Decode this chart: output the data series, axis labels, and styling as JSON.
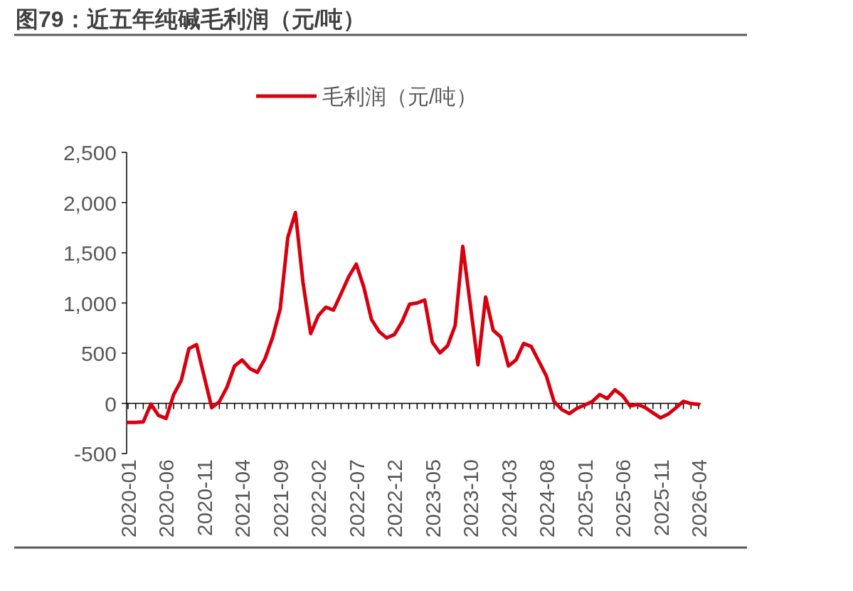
{
  "chart_data": {
    "type": "line",
    "title": "图79：近五年纯碱毛利润（元/吨）",
    "categories": [
      "2020-01",
      null,
      null,
      null,
      null,
      "2020-06",
      null,
      null,
      null,
      null,
      "2020-11",
      null,
      null,
      null,
      null,
      "2021-04",
      null,
      null,
      null,
      null,
      "2021-09",
      null,
      null,
      null,
      null,
      "2022-02",
      null,
      null,
      null,
      null,
      "2022-07",
      null,
      null,
      null,
      null,
      "2022-12",
      null,
      null,
      null,
      null,
      "2023-05",
      null,
      null,
      null,
      null,
      "2023-10",
      null,
      null,
      null,
      null,
      "2024-03",
      null,
      null,
      null,
      null,
      "2024-08",
      null,
      null,
      null,
      null,
      "2025-01",
      null,
      null,
      null,
      null,
      "2025-06",
      null,
      null,
      null,
      null,
      "2025-11",
      null,
      null,
      null,
      null,
      "2026-04"
    ],
    "series": [
      {
        "name": "毛利润（元/吨）",
        "color": "#d7000f",
        "values": [
          -190,
          -190,
          -185,
          -7,
          -120,
          -150,
          88,
          230,
          545,
          585,
          270,
          -43,
          17,
          160,
          373,
          432,
          348,
          308,
          444,
          657,
          941,
          1652,
          1901,
          1202,
          695,
          873,
          958,
          929,
          1092,
          1261,
          1387,
          1155,
          835,
          716,
          652,
          685,
          811,
          988,
          1000,
          1029,
          609,
          503,
          574,
          775,
          1564,
          975,
          384,
          1059,
          728,
          661,
          373,
          432,
          597,
          567,
          420,
          270,
          17,
          -61,
          -102,
          -50,
          -18,
          17,
          88,
          48,
          135,
          76,
          -26,
          -11,
          -43,
          -95,
          -144,
          -107,
          -45,
          21,
          -2,
          -11
        ]
      }
    ],
    "ylim": [
      -500,
      2500
    ],
    "yticks": [
      {
        "value": -500,
        "label": "-500"
      },
      0,
      500,
      {
        "value": 1000,
        "label": "1,000"
      },
      {
        "value": 1500,
        "label": "1,500"
      },
      {
        "value": 2000,
        "label": "2,000"
      },
      {
        "value": 2500,
        "label": "2,500"
      }
    ],
    "legend": "top",
    "marker": "none",
    "line_style": "solid"
  }
}
